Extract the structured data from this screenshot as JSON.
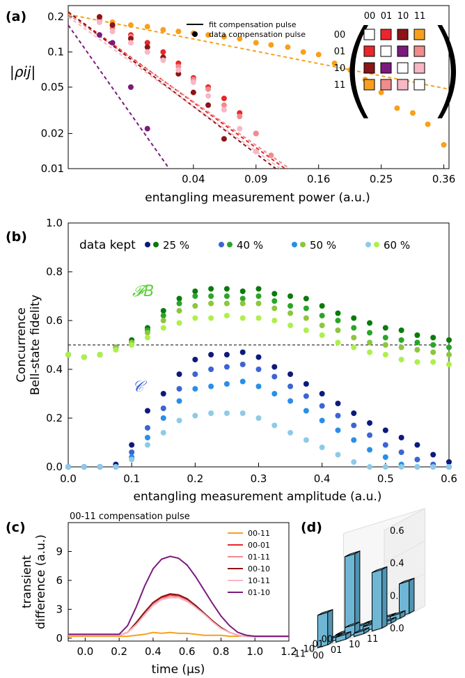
{
  "panel_labels": [
    "(a)",
    "(b)",
    "(c)",
    "(d)"
  ],
  "chart_data": [
    {
      "panel": "(a)",
      "type": "scatter",
      "ylabel": "|ρij|",
      "xlabel": "entangling measurement power (a.u.)",
      "x_scale": "sqrt",
      "y_scale": "log",
      "xticks": [
        "0.04",
        "0.09",
        "0.16",
        "0.25",
        "0.36"
      ],
      "xtick_values": [
        0.04,
        0.09,
        0.16,
        0.25,
        0.36
      ],
      "yticks": [
        "0.2",
        "0.1",
        "0.05",
        "0.02",
        "0.01"
      ],
      "ytick_values": [
        0.2,
        0.1,
        0.05,
        0.02,
        0.01
      ],
      "xlim": [
        0.0,
        0.37
      ],
      "ylim": [
        0.01,
        0.25
      ],
      "legend": {
        "fit": "fit compensation pulse",
        "data": "data compensation pulse"
      },
      "matrix_labels": [
        "00",
        "01",
        "10",
        "11"
      ],
      "matrix_colors": [
        [
          "#ffffff",
          "#e8262b",
          "#8b1517",
          "#f7a01c"
        ],
        [
          "#e8262b",
          "#ffffff",
          "#7b1a7d",
          "#f08c8c"
        ],
        [
          "#8b1517",
          "#7b1a7d",
          "#ffffff",
          "#f7b7c5"
        ],
        [
          "#f7a01c",
          "#f08c8c",
          "#f7b7c5",
          "#ffffff"
        ]
      ],
      "series": [
        {
          "name": "00-11",
          "color": "#f7a01c",
          "x": [
            0.0025,
            0.005,
            0.01,
            0.016,
            0.023,
            0.031,
            0.04,
            0.05,
            0.062,
            0.075,
            0.09,
            0.105,
            0.123,
            0.141,
            0.16,
            0.181,
            0.203,
            0.225,
            0.25,
            0.276,
            0.303,
            0.33,
            0.36
          ],
          "y": [
            0.19,
            0.18,
            0.17,
            0.165,
            0.155,
            0.15,
            0.145,
            0.14,
            0.135,
            0.13,
            0.12,
            0.115,
            0.11,
            0.1,
            0.095,
            0.08,
            0.07,
            0.058,
            0.045,
            0.033,
            0.03,
            0.024,
            0.016
          ],
          "fit_x": [
            0.0,
            0.37
          ],
          "fit_y": [
            0.21,
            0.048
          ]
        },
        {
          "name": "00-01",
          "color": "#e8262b",
          "x": [
            0.0025,
            0.005,
            0.01,
            0.016,
            0.023,
            0.031,
            0.04,
            0.05,
            0.062,
            0.075,
            0.09
          ],
          "y": [
            0.2,
            0.17,
            0.14,
            0.12,
            0.1,
            0.08,
            0.06,
            0.05,
            0.04,
            0.03,
            0.02
          ],
          "fit_x": [
            0.0,
            0.12
          ],
          "fit_y": [
            0.22,
            0.01
          ]
        },
        {
          "name": "01-11",
          "color": "#f08c8c",
          "x": [
            0.0025,
            0.005,
            0.01,
            0.016,
            0.023,
            0.031,
            0.04,
            0.05,
            0.062,
            0.075,
            0.09,
            0.105
          ],
          "y": [
            0.19,
            0.16,
            0.135,
            0.11,
            0.09,
            0.075,
            0.058,
            0.048,
            0.035,
            0.028,
            0.02,
            0.013
          ],
          "fit_x": [
            0.0,
            0.125
          ],
          "fit_y": [
            0.21,
            0.01
          ]
        },
        {
          "name": "00-10",
          "color": "#8b1517",
          "x": [
            0.0025,
            0.005,
            0.01,
            0.016,
            0.023,
            0.031,
            0.04,
            0.05,
            0.062
          ],
          "y": [
            0.2,
            0.17,
            0.13,
            0.11,
            0.09,
            0.065,
            0.045,
            0.035,
            0.018
          ],
          "fit_x": [
            0.0,
            0.11
          ],
          "fit_y": [
            0.22,
            0.01
          ]
        },
        {
          "name": "10-11",
          "color": "#f7b7c5",
          "x": [
            0.0025,
            0.005,
            0.01,
            0.016,
            0.023,
            0.031,
            0.04,
            0.05,
            0.062,
            0.075,
            0.09
          ],
          "y": [
            0.18,
            0.15,
            0.12,
            0.1,
            0.085,
            0.07,
            0.055,
            0.042,
            0.032,
            0.022,
            0.014
          ],
          "fit_x": [
            0.0,
            0.115
          ],
          "fit_y": [
            0.2,
            0.01
          ]
        },
        {
          "name": "01-10",
          "color": "#7b1a7d",
          "x": [
            0.0025,
            0.005,
            0.01,
            0.016
          ],
          "y": [
            0.14,
            0.12,
            0.05,
            0.022
          ],
          "fit_x": [
            0.0,
            0.026
          ],
          "fit_y": [
            0.17,
            0.01
          ]
        }
      ]
    },
    {
      "panel": "(b)",
      "type": "scatter",
      "ylabel": "Concurrence\nBell-state fidelity",
      "xlabel": "entangling measurement amplitude (a.u.)",
      "xlim": [
        0.0,
        0.6
      ],
      "ylim": [
        0.0,
        1.0
      ],
      "xticks": [
        "0.0",
        "0.1",
        "0.2",
        "0.3",
        "0.4",
        "0.5",
        "0.6"
      ],
      "yticks": [
        "0.0",
        "0.2",
        "0.4",
        "0.6",
        "0.8",
        "1.0"
      ],
      "reference_line_y": 0.5,
      "legend_title": "data kept",
      "legend_labels": [
        "25 %",
        "40 %",
        "50 %",
        "60 %"
      ],
      "annotations": {
        "fidelity": "𝓕B",
        "concurrence": "𝒞"
      },
      "x": [
        0.0,
        0.025,
        0.05,
        0.075,
        0.1,
        0.125,
        0.15,
        0.175,
        0.2,
        0.225,
        0.25,
        0.275,
        0.3,
        0.325,
        0.35,
        0.375,
        0.4,
        0.425,
        0.45,
        0.475,
        0.5,
        0.525,
        0.55,
        0.575,
        0.6
      ],
      "series": [
        {
          "name": "25 %",
          "quantity": "fidelity",
          "color": "#0b7a0b",
          "values": [
            0.46,
            0.45,
            0.46,
            0.49,
            0.52,
            0.57,
            0.64,
            0.69,
            0.72,
            0.73,
            0.73,
            0.72,
            0.73,
            0.71,
            0.7,
            0.69,
            0.66,
            0.63,
            0.61,
            0.59,
            0.57,
            0.56,
            0.54,
            0.53,
            0.52
          ]
        },
        {
          "name": "40 %",
          "quantity": "fidelity",
          "color": "#2aa52a",
          "values": [
            0.46,
            0.45,
            0.46,
            0.49,
            0.51,
            0.56,
            0.62,
            0.67,
            0.7,
            0.7,
            0.7,
            0.69,
            0.7,
            0.68,
            0.66,
            0.65,
            0.62,
            0.6,
            0.57,
            0.55,
            0.53,
            0.52,
            0.51,
            0.5,
            0.49
          ]
        },
        {
          "name": "50 %",
          "quantity": "fidelity",
          "color": "#8cc63e",
          "values": [
            0.46,
            0.45,
            0.46,
            0.49,
            0.51,
            0.55,
            0.6,
            0.64,
            0.66,
            0.67,
            0.67,
            0.67,
            0.67,
            0.65,
            0.63,
            0.61,
            0.58,
            0.56,
            0.53,
            0.51,
            0.5,
            0.49,
            0.48,
            0.47,
            0.46
          ]
        },
        {
          "name": "60 %",
          "quantity": "fidelity",
          "color": "#adf04a",
          "values": [
            0.46,
            0.45,
            0.46,
            0.48,
            0.5,
            0.53,
            0.57,
            0.59,
            0.61,
            0.61,
            0.62,
            0.61,
            0.61,
            0.6,
            0.58,
            0.56,
            0.54,
            0.51,
            0.49,
            0.47,
            0.46,
            0.44,
            0.43,
            0.43,
            0.42
          ]
        },
        {
          "name": "25 %",
          "quantity": "concurrence",
          "color": "#0d1a7c",
          "values": [
            0.0,
            0.0,
            0.0,
            0.01,
            0.09,
            0.23,
            0.3,
            0.38,
            0.44,
            0.46,
            0.46,
            0.47,
            0.45,
            0.41,
            0.38,
            0.34,
            0.3,
            0.26,
            0.22,
            0.18,
            0.15,
            0.12,
            0.09,
            0.05,
            0.02
          ]
        },
        {
          "name": "40 %",
          "quantity": "concurrence",
          "color": "#3c64d4",
          "values": [
            0.0,
            0.0,
            0.0,
            0.0,
            0.06,
            0.16,
            0.24,
            0.32,
            0.38,
            0.4,
            0.41,
            0.42,
            0.4,
            0.37,
            0.33,
            0.29,
            0.25,
            0.21,
            0.17,
            0.13,
            0.09,
            0.06,
            0.03,
            0.01,
            0.0
          ]
        },
        {
          "name": "50 %",
          "quantity": "concurrence",
          "color": "#2a8ee8",
          "values": [
            0.0,
            0.0,
            0.0,
            0.0,
            0.04,
            0.12,
            0.2,
            0.27,
            0.32,
            0.33,
            0.34,
            0.35,
            0.33,
            0.3,
            0.27,
            0.23,
            0.19,
            0.15,
            0.11,
            0.07,
            0.04,
            0.01,
            0.0,
            0.0,
            0.0
          ]
        },
        {
          "name": "60 %",
          "quantity": "concurrence",
          "color": "#8ecae8",
          "values": [
            0.0,
            0.0,
            0.0,
            0.0,
            0.03,
            0.09,
            0.14,
            0.19,
            0.21,
            0.22,
            0.22,
            0.22,
            0.2,
            0.17,
            0.14,
            0.11,
            0.08,
            0.05,
            0.02,
            0.0,
            0.0,
            0.0,
            0.0,
            0.0,
            0.0
          ]
        }
      ]
    },
    {
      "panel": "(c)",
      "type": "line",
      "title": "00-11 compensation pulse",
      "ylabel": "transient\ndifference (a.u.)",
      "xlabel": "time (μs)",
      "xlim": [
        -0.1,
        1.2
      ],
      "ylim": [
        -0.3,
        12.0
      ],
      "xticks": [
        "0.0",
        "0.2",
        "0.4",
        "0.6",
        "0.8",
        "1.0",
        "1.2"
      ],
      "yticks": [
        "0",
        "3",
        "6",
        "9"
      ],
      "x": [
        -0.1,
        0.0,
        0.1,
        0.2,
        0.25,
        0.3,
        0.35,
        0.4,
        0.45,
        0.5,
        0.55,
        0.6,
        0.65,
        0.7,
        0.75,
        0.8,
        0.85,
        0.9,
        0.95,
        1.0,
        1.1,
        1.2
      ],
      "series": [
        {
          "name": "00-11",
          "color": "#f7a01c",
          "values": [
            0.2,
            0.2,
            0.2,
            0.2,
            0.2,
            0.3,
            0.4,
            0.6,
            0.5,
            0.6,
            0.5,
            0.5,
            0.4,
            0.3,
            0.3,
            0.3,
            0.2,
            0.2,
            0.3,
            0.2,
            0.2,
            0.2
          ]
        },
        {
          "name": "00-01",
          "color": "#e8262b",
          "values": [
            0.3,
            0.3,
            0.3,
            0.3,
            0.6,
            1.5,
            2.6,
            3.6,
            4.2,
            4.5,
            4.4,
            4.0,
            3.4,
            2.6,
            1.8,
            1.1,
            0.6,
            0.3,
            0.2,
            0.2,
            0.2,
            0.2
          ]
        },
        {
          "name": "01-11",
          "color": "#f08c8c",
          "values": [
            0.3,
            0.3,
            0.3,
            0.3,
            0.6,
            1.4,
            2.5,
            3.5,
            4.1,
            4.3,
            4.3,
            3.9,
            3.3,
            2.5,
            1.8,
            1.1,
            0.6,
            0.3,
            0.2,
            0.2,
            0.2,
            0.2
          ]
        },
        {
          "name": "00-10",
          "color": "#8b1517",
          "values": [
            0.3,
            0.3,
            0.3,
            0.3,
            0.6,
            1.6,
            2.7,
            3.7,
            4.3,
            4.6,
            4.5,
            4.1,
            3.4,
            2.6,
            1.8,
            1.1,
            0.6,
            0.3,
            0.2,
            0.2,
            0.2,
            0.2
          ]
        },
        {
          "name": "10-11",
          "color": "#f7b7c5",
          "values": [
            0.3,
            0.3,
            0.3,
            0.3,
            0.6,
            1.4,
            2.4,
            3.4,
            4.0,
            4.2,
            4.2,
            3.8,
            3.2,
            2.5,
            1.7,
            1.0,
            0.6,
            0.3,
            0.2,
            0.2,
            0.2,
            0.2
          ]
        },
        {
          "name": "01-10",
          "color": "#7b1a7d",
          "values": [
            0.4,
            0.4,
            0.4,
            0.4,
            1.3,
            3.2,
            5.4,
            7.2,
            8.2,
            8.5,
            8.3,
            7.6,
            6.4,
            5.0,
            3.6,
            2.3,
            1.3,
            0.6,
            0.3,
            0.2,
            0.2,
            0.2
          ]
        }
      ]
    },
    {
      "panel": "(d)",
      "type": "bar3d",
      "row_labels": [
        "00",
        "01",
        "10",
        "11"
      ],
      "col_labels": [
        "00",
        "01",
        "10",
        "11"
      ],
      "zticks": [
        "0.0",
        "0.2",
        "0.4",
        "0.6"
      ],
      "zlim": [
        0.0,
        0.6
      ],
      "bar_color": "#7ec8e3",
      "values": [
        [
          0.47,
          0.02,
          0.02,
          0.2
        ],
        [
          0.02,
          0.03,
          0.06,
          0.03
        ],
        [
          0.02,
          0.06,
          0.03,
          0.02
        ],
        [
          0.2,
          0.03,
          0.02,
          0.36
        ]
      ]
    }
  ]
}
